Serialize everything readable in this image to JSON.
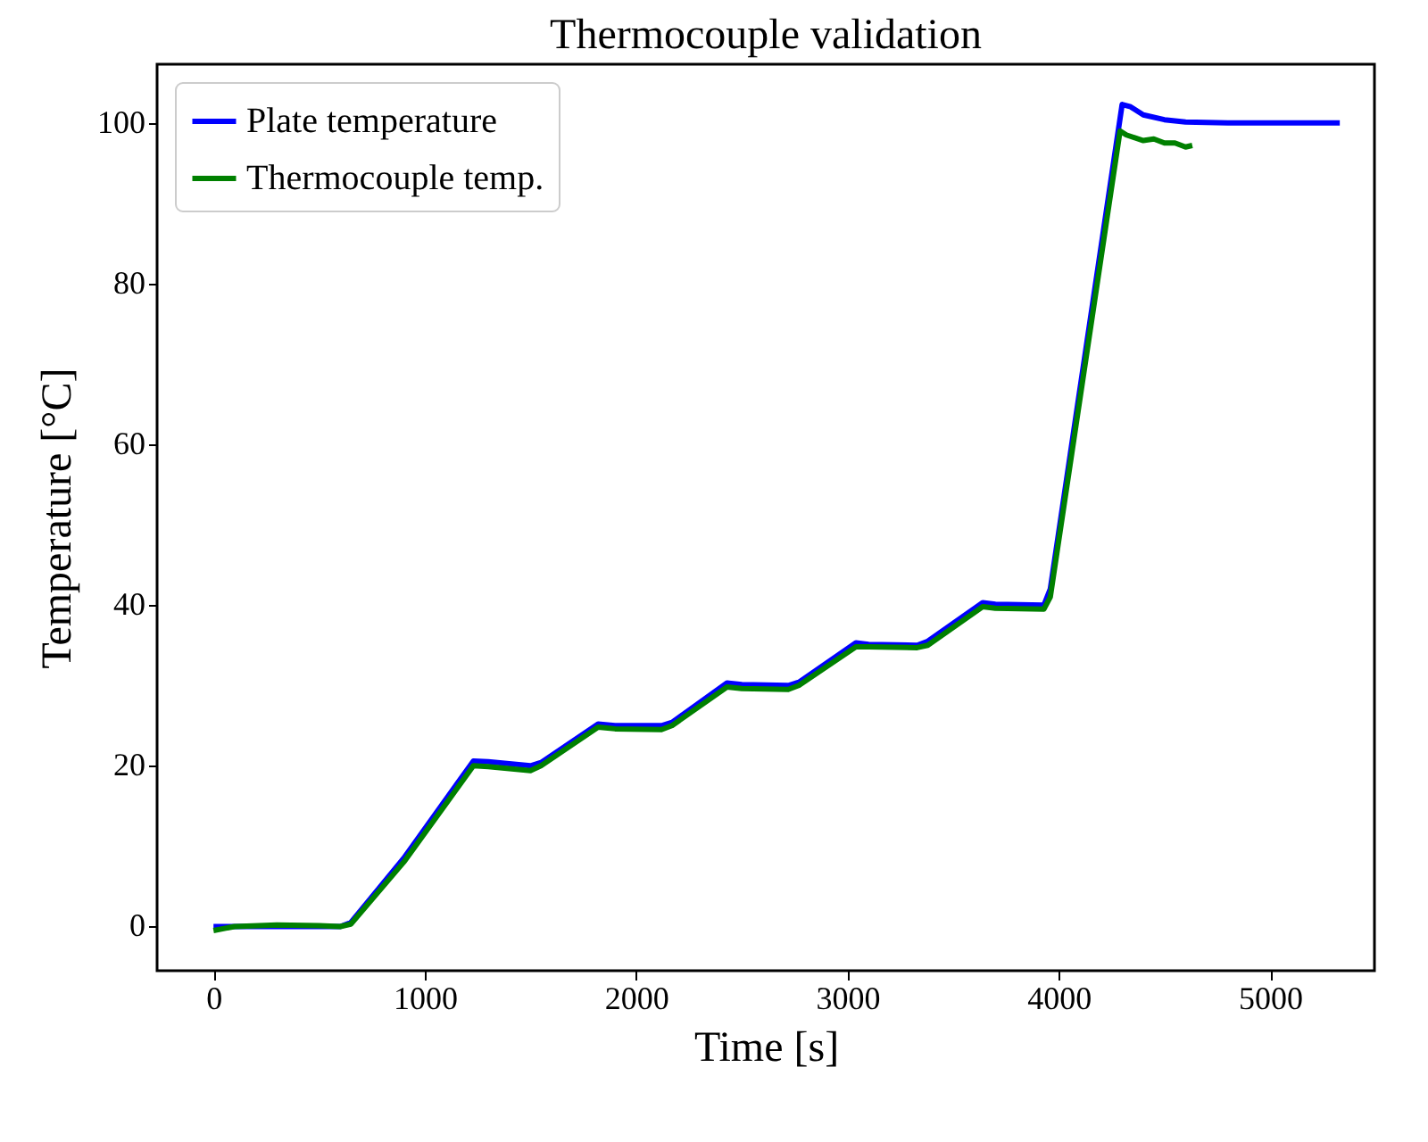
{
  "chart_data": {
    "type": "line",
    "title": "Thermocouple validation",
    "xlabel": "Time [s]",
    "ylabel": "Temperature [°C]",
    "xlim": [
      -267,
      5494
    ],
    "ylim": [
      -5.5,
      107.3
    ],
    "xticks": [
      0,
      1000,
      2000,
      3000,
      4000,
      5000
    ],
    "yticks": [
      0,
      20,
      40,
      60,
      80,
      100
    ],
    "grid": false,
    "legend": "top left",
    "marker": "none",
    "line_style": "solid",
    "series": [
      {
        "name": "Plate temperature",
        "color": "#0000ff",
        "x": [
          0,
          300,
          600,
          650,
          900,
          1230,
          1300,
          1500,
          1550,
          1820,
          1900,
          2120,
          2170,
          2430,
          2500,
          2720,
          2770,
          3040,
          3100,
          3330,
          3380,
          3640,
          3700,
          3930,
          3960,
          4300,
          4340,
          4400,
          4500,
          4600,
          4800,
          5000,
          5330
        ],
        "values": [
          0,
          0,
          0,
          0.5,
          8.5,
          20.6,
          20.5,
          20,
          20.4,
          25.2,
          25,
          25,
          25.4,
          30.3,
          30.1,
          30,
          30.4,
          35.3,
          35.1,
          35,
          35.5,
          40.3,
          40.1,
          40,
          42,
          102.3,
          102,
          101,
          100.4,
          100.1,
          100,
          100,
          100
        ]
      },
      {
        "name": "Thermocouple temp.",
        "color": "#008000",
        "x": [
          0,
          100,
          300,
          500,
          600,
          650,
          900,
          1230,
          1300,
          1500,
          1550,
          1820,
          1900,
          2120,
          2170,
          2430,
          2500,
          2720,
          2770,
          3040,
          3100,
          3330,
          3380,
          3640,
          3700,
          3930,
          3960,
          4290,
          4320,
          4400,
          4450,
          4500,
          4550,
          4600,
          4632
        ],
        "values": [
          -0.5,
          0,
          0.2,
          0.1,
          0,
          0.3,
          8,
          20,
          19.9,
          19.4,
          20,
          24.8,
          24.6,
          24.5,
          25,
          29.8,
          29.6,
          29.5,
          30,
          34.8,
          34.8,
          34.7,
          35,
          39.8,
          39.6,
          39.5,
          41,
          99,
          98.5,
          97.8,
          98,
          97.5,
          97.5,
          97,
          97.2
        ]
      }
    ]
  }
}
